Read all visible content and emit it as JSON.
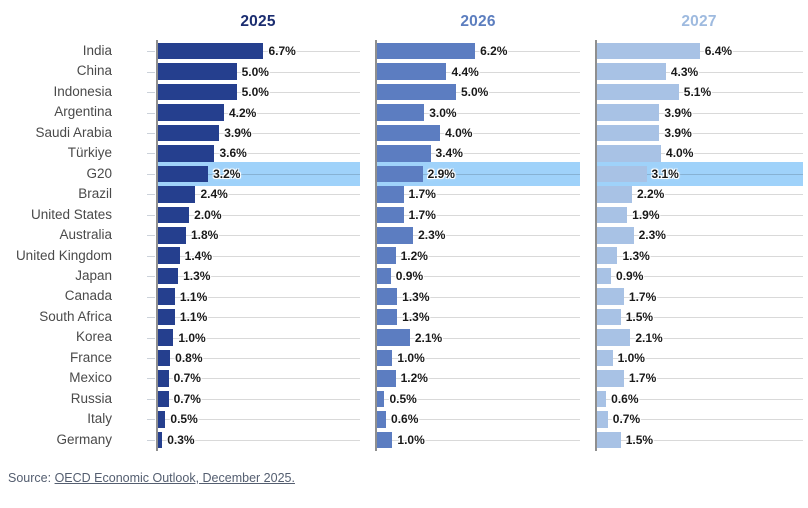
{
  "chart_data": {
    "type": "bar",
    "orientation": "horizontal",
    "unit": "%",
    "grid": true,
    "xmax": 12.8,
    "categories": [
      "India",
      "China",
      "Indonesia",
      "Argentina",
      "Saudi Arabia",
      "Türkiye",
      "G20",
      "Brazil",
      "United States",
      "Australia",
      "United Kingdom",
      "Japan",
      "Canada",
      "South Africa",
      "Korea",
      "France",
      "Mexico",
      "Russia",
      "Italy",
      "Germany"
    ],
    "highlight_category": "G20",
    "series": [
      {
        "name": "2025",
        "bar_color": "#253F8E",
        "header_color": "#1B2D70",
        "values": [
          6.7,
          5.0,
          5.0,
          4.2,
          3.9,
          3.6,
          3.2,
          2.4,
          2.0,
          1.8,
          1.4,
          1.3,
          1.1,
          1.1,
          1.0,
          0.8,
          0.7,
          0.7,
          0.5,
          0.3
        ]
      },
      {
        "name": "2026",
        "bar_color": "#5C7DC1",
        "header_color": "#5C7EBF",
        "values": [
          6.2,
          4.4,
          5.0,
          3.0,
          4.0,
          3.4,
          2.9,
          1.7,
          1.7,
          2.3,
          1.2,
          0.9,
          1.3,
          1.3,
          2.1,
          1.0,
          1.2,
          0.5,
          0.6,
          1.0
        ]
      },
      {
        "name": "2027",
        "bar_color": "#A8C2E5",
        "header_color": "#9EBADF",
        "values": [
          6.4,
          4.3,
          5.1,
          3.9,
          3.9,
          4.0,
          3.1,
          2.2,
          1.9,
          2.3,
          1.3,
          0.9,
          1.7,
          1.5,
          2.1,
          1.0,
          1.7,
          0.6,
          0.7,
          1.5
        ]
      }
    ],
    "highlight_band_color": "#9FD2FA"
  },
  "source": {
    "prefix": "Source: ",
    "link_text": "OECD Economic Outlook, December 2025."
  },
  "colors": {
    "axis": "#8f8f8f",
    "tick": "#ccd2da",
    "gridline": "rgba(0,0,0,0.15)",
    "country_label": "#4a4a4a",
    "value_label": "#191919",
    "source_text": "#545e70"
  }
}
